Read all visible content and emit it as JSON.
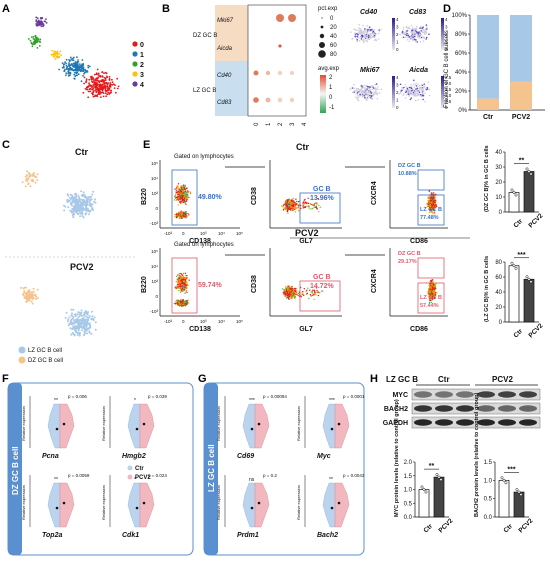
{
  "panels": {
    "A": {
      "letter": "A",
      "legend": [
        "0",
        "1",
        "2",
        "3",
        "4"
      ],
      "legend_colors": [
        "#e31a1c",
        "#1f78b4",
        "#33a02c",
        "#ffc107",
        "#6a3d9a"
      ]
    },
    "B": {
      "letter": "B",
      "groups": [
        "DZ GC B",
        "LZ GC B"
      ],
      "genes": [
        "Mki67",
        "Aicda",
        "Cd40",
        "Cd83"
      ],
      "clusters": [
        "0",
        "1",
        "2",
        "3",
        "4"
      ],
      "pct_title": "pct.exp",
      "pct_levels": [
        "0",
        "20",
        "40",
        "60",
        "80"
      ],
      "avg_title": "avg.exp",
      "avg_ticks": [
        "2",
        "1",
        "0",
        "-1"
      ]
    },
    "B_feat": {
      "genes": [
        "Cd40",
        "Cd83",
        "Mki67",
        "Aicda"
      ],
      "scales": [
        [
          "4",
          "3",
          "2",
          "1",
          "0"
        ],
        [
          "4",
          "3",
          "2",
          "1",
          "0"
        ],
        [
          "4",
          "3",
          "2",
          "1",
          "0"
        ],
        [
          "2.5",
          "2.0",
          "1.5",
          "1.0",
          "0.5",
          "0"
        ]
      ]
    },
    "C": {
      "letter": "C",
      "titles": [
        "Ctr",
        "PCV2"
      ],
      "legend": [
        "LZ GC B cell",
        "DZ GC B cell"
      ],
      "colors": [
        "#a8c8e8",
        "#f4c38e"
      ]
    },
    "D": {
      "letter": "D",
      "ylabel": "Fraction of GC B cell subsets",
      "yticks": [
        "0%",
        "20%",
        "40%",
        "60%",
        "80%",
        "100%"
      ],
      "categories": [
        "Ctr",
        "PCV2"
      ]
    },
    "E": {
      "letter": "E",
      "row_titles": [
        "Ctr",
        "PCV2"
      ],
      "gate_text": "Gated on lymphocytes",
      "ctr": {
        "gate1": "49.80%",
        "gc": "GC B",
        "gc_pct": "13.96%",
        "dz": "DZ GC B",
        "dz_pct": "10.88%",
        "lz": "LZ GC B",
        "lz_pct": "77.48%"
      },
      "pcv2": {
        "gate1": "59.74%",
        "gc": "GC B",
        "gc_pct": "14.72%",
        "dz": "DZ GC B",
        "dz_pct": "29.17%",
        "lz": "LZ GC B",
        "lz_pct": "57.44%"
      },
      "axes": {
        "b220": "B220",
        "cd138": "CD138",
        "cd38": "CD38",
        "gl7": "GL7",
        "cxcr4": "CXCR4",
        "cd86": "CD86"
      },
      "ticks_y": [
        "10⁵",
        "10⁴",
        "10³",
        "0",
        "-10³"
      ],
      "ticks_x": [
        "-10³",
        "0",
        "10³",
        "10⁴",
        "10⁵"
      ]
    },
    "E_bars": {
      "top": {
        "ylabel": "(DZ GC B)% in GC B cells",
        "yticks": [
          "0",
          "10",
          "20",
          "30",
          "40"
        ],
        "sig": "**",
        "categories": [
          "Ctr",
          "PCV2"
        ]
      },
      "bottom": {
        "ylabel": "(LZ GC B)% in GC B cells",
        "yticks": [
          "0",
          "20",
          "40",
          "60",
          "80"
        ],
        "sig": "***",
        "categories": [
          "Ctr",
          "PCV2"
        ]
      }
    },
    "F": {
      "letter": "F",
      "side": "DZ GC B cell",
      "genes": [
        "Pcna",
        "Hmgb2",
        "Top2a",
        "Cdk1"
      ],
      "pvals": [
        "p = 0.006",
        "p = 0.039",
        "p = 0.0059",
        "p = 0.024"
      ],
      "sig": [
        "**",
        "*",
        "**",
        "*"
      ],
      "ylabel": "Relative expression",
      "legend": [
        "Ctr",
        "PCV2"
      ]
    },
    "G": {
      "letter": "G",
      "side": "LZ GC B cell",
      "genes": [
        "Cd69",
        "Myc",
        "Prdm1",
        "Bach2"
      ],
      "pvals": [
        "p = 0.00094",
        "p = 0.0001",
        "p = 0.2",
        "p = 0.0043"
      ],
      "sig": [
        "***",
        "***",
        "ns",
        "**"
      ],
      "ylabel": "Relative expression"
    },
    "H": {
      "letter": "H",
      "title": "LZ GC B",
      "groups": [
        "Ctr",
        "PCV2"
      ],
      "bands": [
        "MYC",
        "BACH2",
        "GAPDH"
      ],
      "bar1": {
        "ylabel": "MYC protein levels (relative to control group)",
        "yticks": [
          "0.0",
          "0.5",
          "1.0",
          "1.5",
          "2.0"
        ],
        "sig": "**"
      },
      "bar2": {
        "ylabel": "BACH2 protein levels (relative to control group)",
        "yticks": [
          "0.0",
          "0.5",
          "1.0",
          "1.5"
        ],
        "sig": "***"
      },
      "categories": [
        "Ctr",
        "PCV2"
      ]
    }
  },
  "chart_data": [
    {
      "type": "bar",
      "title": "",
      "categories": [
        "Ctr",
        "PCV2"
      ],
      "series": [
        {
          "name": "LZ",
          "values": [
            88,
            70
          ]
        },
        {
          "name": "DZ",
          "values": [
            12,
            30
          ]
        }
      ],
      "ylim": [
        0,
        100
      ],
      "ylabel": "Fraction of GC B cell subsets"
    },
    {
      "type": "bar",
      "categories": [
        "Ctr",
        "PCV2"
      ],
      "values": [
        13,
        27
      ],
      "ylim": [
        0,
        40
      ],
      "ylabel": "(DZ GC B)% in GC B cells"
    },
    {
      "type": "bar",
      "categories": [
        "Ctr",
        "PCV2"
      ],
      "values": [
        75,
        57
      ],
      "ylim": [
        0,
        80
      ],
      "ylabel": "(LZ GC B)% in GC B cells"
    },
    {
      "type": "bar",
      "categories": [
        "Ctr",
        "PCV2"
      ],
      "values": [
        1.0,
        1.45
      ],
      "ylim": [
        0,
        2.0
      ],
      "ylabel": "MYC protein levels (relative to control group)"
    },
    {
      "type": "bar",
      "categories": [
        "Ctr",
        "PCV2"
      ],
      "values": [
        1.0,
        0.68
      ],
      "ylim": [
        0,
        1.5
      ],
      "ylabel": "BACH2 protein levels (relative to control group)"
    }
  ]
}
